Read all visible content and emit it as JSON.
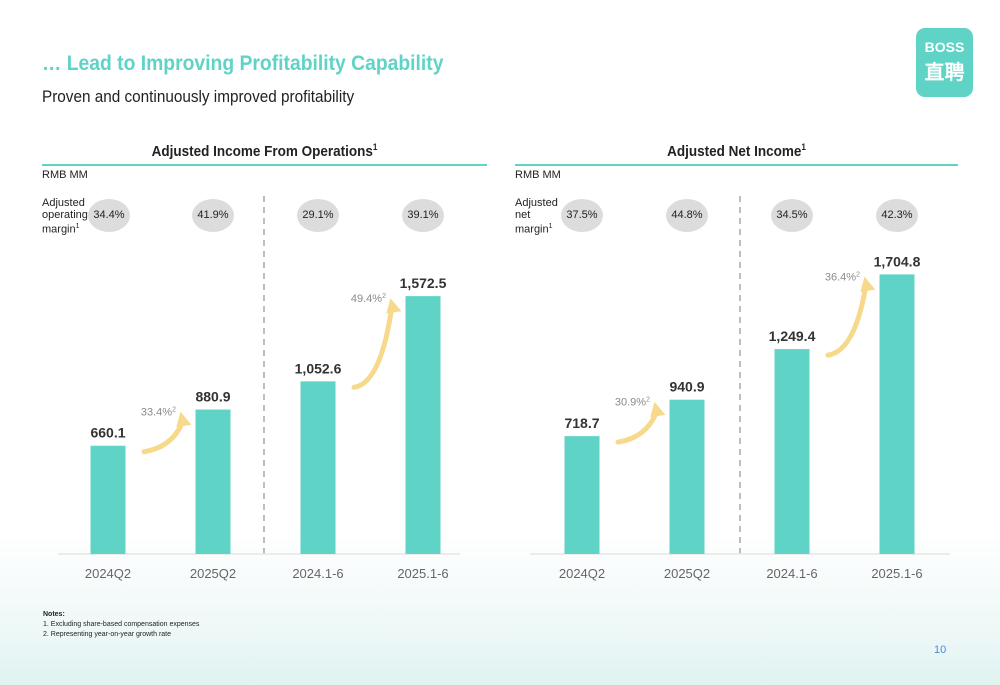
{
  "header": {
    "title": "… Lead to Improving Profitability Capability",
    "subtitle": "Proven and continuously improved profitability"
  },
  "logo": {
    "line1": "BOSS",
    "line2": "直聘"
  },
  "chart_data": [
    {
      "type": "bar",
      "title": "Adjusted Income From Operations",
      "title_sup": "1",
      "unit": "RMB MM",
      "margin_label": "Adjusted\noperating\nmargin",
      "margin_label_sup": "1",
      "categories": [
        "2024Q2",
        "2025Q2",
        "2024.1-6",
        "2025.1-6"
      ],
      "values": [
        660.1,
        880.9,
        1052.6,
        1572.5
      ],
      "value_labels": [
        "660.1",
        "880.9",
        "1,052.6",
        "1,572.5"
      ],
      "margins": [
        "34.4%",
        "41.9%",
        "29.1%",
        "39.1%"
      ],
      "growth": [
        {
          "from": 0,
          "to": 1,
          "label": "33.4%",
          "sup": "2"
        },
        {
          "from": 2,
          "to": 3,
          "label": "49.4%",
          "sup": "2"
        }
      ],
      "ylim": [
        0,
        2000
      ],
      "grid": false
    },
    {
      "type": "bar",
      "title": "Adjusted Net Income",
      "title_sup": "1",
      "unit": "RMB MM",
      "margin_label": "Adjusted\nnet\nmargin",
      "margin_label_sup": "1",
      "categories": [
        "2024Q2",
        "2025Q2",
        "2024.1-6",
        "2025.1-6"
      ],
      "values": [
        718.7,
        940.9,
        1249.4,
        1704.8
      ],
      "value_labels": [
        "718.7",
        "940.9",
        "1,249.4",
        "1,704.8"
      ],
      "margins": [
        "37.5%",
        "44.8%",
        "34.5%",
        "42.3%"
      ],
      "growth": [
        {
          "from": 0,
          "to": 1,
          "label": "30.9%",
          "sup": "2"
        },
        {
          "from": 2,
          "to": 3,
          "label": "36.4%",
          "sup": "2"
        }
      ],
      "ylim": [
        0,
        2000
      ],
      "grid": false
    }
  ],
  "colors": {
    "accent": "#5fd3c6",
    "bar": "#5fd3c6",
    "arrow": "#f6d98a",
    "pill": "#dcdcdc",
    "page_number": "#4d8ad6"
  },
  "notes": {
    "heading": "Notes:",
    "items": [
      "1. Excluding share-based compensation expenses",
      "2. Representing year-on-year growth rate"
    ]
  },
  "page_number": "10"
}
